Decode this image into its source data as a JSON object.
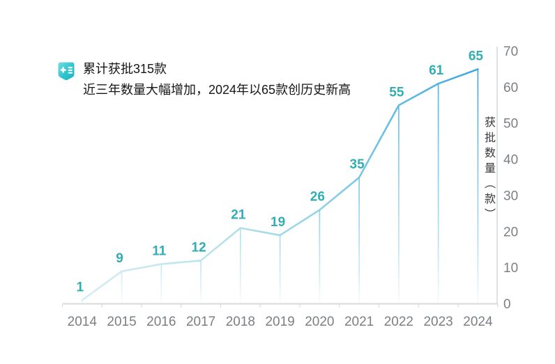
{
  "header": {
    "icon": "medical-record-badge-icon",
    "title_line1": "累计获批315款",
    "title_line2": "近三年数量大幅增加，2024年以65款创历史新高"
  },
  "chart_data": {
    "type": "line",
    "title": "累计获批315款",
    "subtitle": "近三年数量大幅增加，2024年以65款创历史新高",
    "categories": [
      "2014",
      "2015",
      "2016",
      "2017",
      "2018",
      "2019",
      "2020",
      "2021",
      "2022",
      "2023",
      "2024"
    ],
    "values": [
      1,
      9,
      11,
      12,
      21,
      19,
      26,
      35,
      55,
      61,
      65
    ],
    "xlabel": "",
    "ylabel": "获批数量（款）",
    "ylim": [
      0,
      70
    ],
    "yticks": [
      0,
      10,
      20,
      30,
      40,
      50,
      60,
      70
    ],
    "grid": false,
    "legend_position": "none",
    "label_position": "top",
    "yaxis_side": "right",
    "colors": {
      "line_gradient": [
        "#d6edf2",
        "#bde4ec",
        "#9bd6e7",
        "#64bde1",
        "#3ea6dc"
      ],
      "data_label": "#31adb4",
      "axis_line": "#d7dadc",
      "tick_label": "#7b7f83",
      "axis_title": "#35383c",
      "header_icon": "#2fc3cd"
    }
  }
}
